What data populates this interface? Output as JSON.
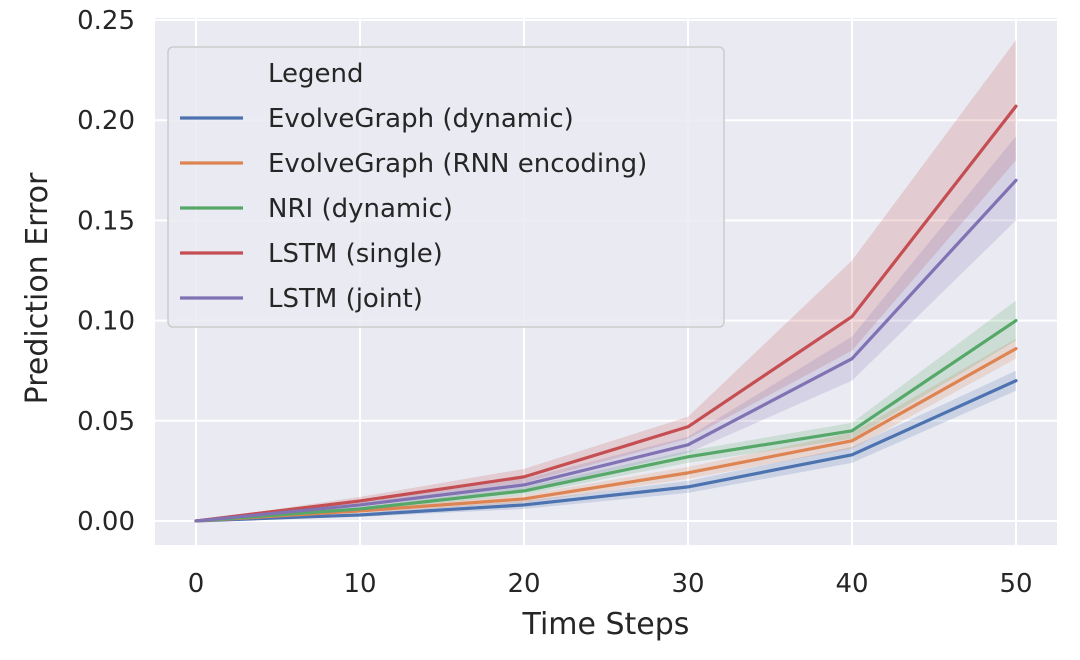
{
  "chart_data": {
    "type": "line",
    "title": "",
    "xlabel": "Time Steps",
    "ylabel": "Prediction Error",
    "x": [
      0,
      10,
      20,
      30,
      40,
      50
    ],
    "xlim": [
      -2.5,
      52.5
    ],
    "ylim": [
      -0.012,
      0.251
    ],
    "xticks": [
      0,
      10,
      20,
      30,
      40,
      50
    ],
    "xtick_labels": [
      "0",
      "10",
      "20",
      "30",
      "40",
      "50"
    ],
    "yticks": [
      0.0,
      0.05,
      0.1,
      0.15,
      0.2,
      0.25
    ],
    "ytick_labels": [
      "0.00",
      "0.05",
      "0.10",
      "0.15",
      "0.20",
      "0.25"
    ],
    "grid": true,
    "legend": {
      "title": "Legend",
      "placement": "top-left"
    },
    "series": [
      {
        "name": "EvolveGraph (dynamic)",
        "color": "#4c72b0",
        "values": [
          0.0,
          0.003,
          0.008,
          0.017,
          0.033,
          0.07
        ],
        "lower": [
          0.0,
          0.002,
          0.006,
          0.014,
          0.029,
          0.065
        ],
        "upper": [
          0.0,
          0.004,
          0.01,
          0.02,
          0.037,
          0.075
        ]
      },
      {
        "name": "EvolveGraph (RNN encoding)",
        "color": "#dd8452",
        "values": [
          0.0,
          0.005,
          0.011,
          0.024,
          0.04,
          0.086
        ],
        "lower": [
          0.0,
          0.004,
          0.009,
          0.021,
          0.036,
          0.081
        ],
        "upper": [
          0.0,
          0.006,
          0.013,
          0.027,
          0.044,
          0.091
        ]
      },
      {
        "name": "NRI (dynamic)",
        "color": "#55a868",
        "values": [
          0.0,
          0.006,
          0.015,
          0.032,
          0.045,
          0.1
        ],
        "lower": [
          0.0,
          0.005,
          0.013,
          0.029,
          0.041,
          0.09
        ],
        "upper": [
          0.0,
          0.007,
          0.017,
          0.035,
          0.049,
          0.11
        ]
      },
      {
        "name": "LSTM (single)",
        "color": "#c44e52",
        "values": [
          0.0,
          0.01,
          0.022,
          0.047,
          0.102,
          0.207
        ],
        "lower": [
          0.0,
          0.008,
          0.019,
          0.041,
          0.085,
          0.18
        ],
        "upper": [
          0.0,
          0.012,
          0.026,
          0.052,
          0.13,
          0.24
        ]
      },
      {
        "name": "LSTM (joint)",
        "color": "#8172b3",
        "values": [
          0.0,
          0.008,
          0.018,
          0.038,
          0.081,
          0.17
        ],
        "lower": [
          0.0,
          0.006,
          0.015,
          0.034,
          0.07,
          0.15
        ],
        "upper": [
          0.0,
          0.01,
          0.021,
          0.042,
          0.092,
          0.192
        ]
      }
    ]
  },
  "colors": {
    "plot_background": "#eaeaf2",
    "grid": "#ffffff",
    "text": "#262626"
  }
}
